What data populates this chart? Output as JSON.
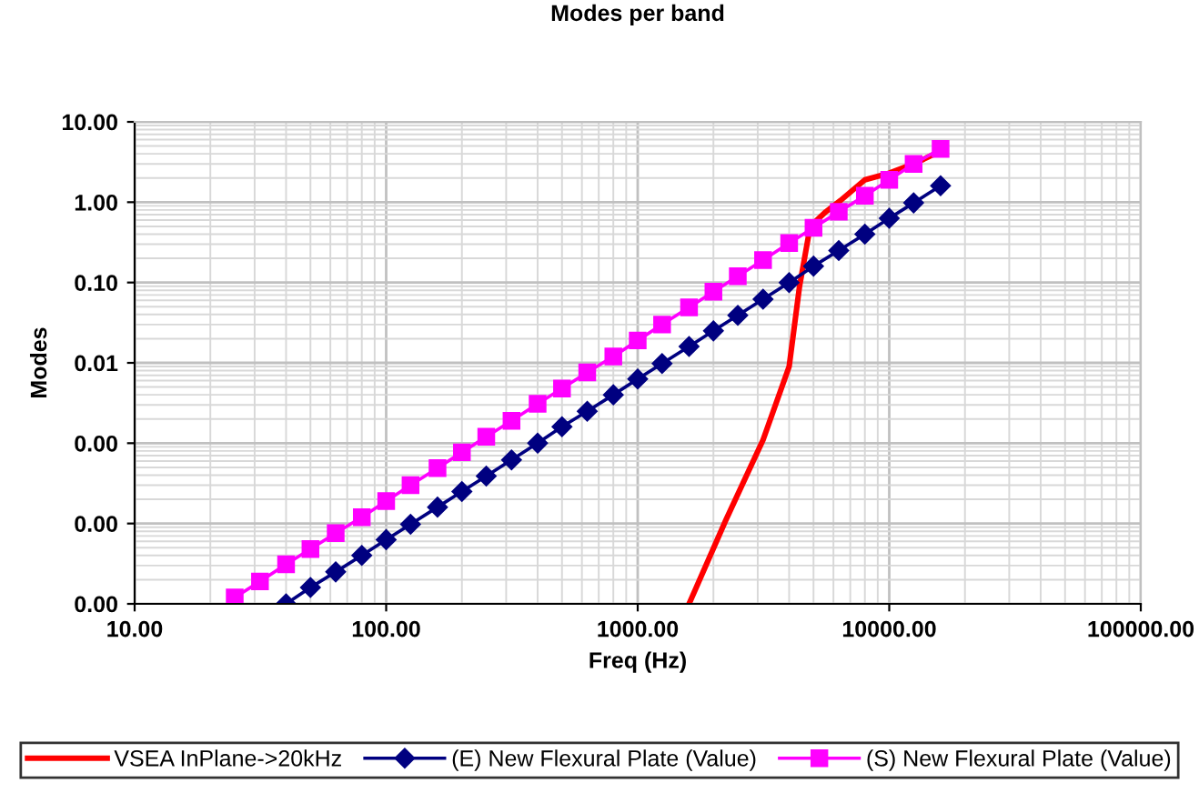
{
  "chart_data": {
    "type": "line",
    "title": "Modes per band",
    "xlabel": "Freq (Hz)",
    "ylabel": "Modes",
    "log": "xy",
    "grid": true,
    "legend": "bottom",
    "line_style": "solid",
    "xlim": [
      10,
      100000
    ],
    "xticks": [
      {
        "value": 10,
        "label": "10.00"
      },
      {
        "value": 100,
        "label": "100.00"
      },
      {
        "value": 1000,
        "label": "1000.00"
      },
      {
        "value": 10000,
        "label": "10000.00"
      },
      {
        "value": 100000,
        "label": "100000.00"
      }
    ],
    "ylim": [
      1e-05,
      10
    ],
    "yticks": [
      {
        "value": 1e-05,
        "label": "0.00"
      },
      {
        "value": 0.0001,
        "label": "0.00"
      },
      {
        "value": 0.001,
        "label": "0.00"
      },
      {
        "value": 0.01,
        "label": "0.01"
      },
      {
        "value": 0.1,
        "label": "0.10"
      },
      {
        "value": 1,
        "label": "1.00"
      },
      {
        "value": 10,
        "label": "10.00"
      }
    ],
    "series": [
      {
        "name": "VSEA InPlane->20kHz",
        "color": "#ff0000",
        "marker": "none",
        "x": [
          1600,
          2240,
          3150,
          4000,
          4400,
          4850,
          5600,
          6400,
          8000,
          10000,
          12500,
          16000
        ],
        "values": [
          1e-05,
          0.00011,
          0.0011,
          0.009,
          0.09,
          0.5,
          0.76,
          1.05,
          1.9,
          2.3,
          3.0,
          4.3
        ]
      },
      {
        "name": "(E) New Flexural Plate (Value)",
        "color": "#000080",
        "marker": "diamond",
        "x": [
          40,
          50,
          63,
          80,
          100,
          125,
          160,
          200,
          250,
          315,
          400,
          500,
          630,
          800,
          1000,
          1250,
          1600,
          2000,
          2500,
          3150,
          4000,
          5000,
          6300,
          8000,
          10000,
          12500,
          16000
        ],
        "values": [
          1e-05,
          1.6e-05,
          2.5e-05,
          4e-05,
          6.3e-05,
          9.8e-05,
          0.00016,
          0.00025,
          0.00039,
          0.00062,
          0.001,
          0.0016,
          0.0025,
          0.004,
          0.0063,
          0.0098,
          0.016,
          0.025,
          0.039,
          0.062,
          0.1,
          0.16,
          0.25,
          0.4,
          0.63,
          0.98,
          1.6
        ]
      },
      {
        "name": "(S) New Flexural Plate (Value)",
        "color": "#ff00ff",
        "marker": "square",
        "x": [
          25,
          31.5,
          40,
          50,
          63,
          80,
          100,
          125,
          160,
          200,
          250,
          315,
          400,
          500,
          630,
          800,
          1000,
          1250,
          1600,
          2000,
          2500,
          3150,
          4000,
          5000,
          6300,
          8000,
          10000,
          12500,
          16000
        ],
        "values": [
          1.2e-05,
          1.9e-05,
          3.1e-05,
          4.8e-05,
          7.6e-05,
          0.00012,
          0.00019,
          0.0003,
          0.00049,
          0.00077,
          0.0012,
          0.0019,
          0.0031,
          0.0048,
          0.0076,
          0.012,
          0.019,
          0.03,
          0.049,
          0.077,
          0.12,
          0.19,
          0.31,
          0.48,
          0.76,
          1.2,
          1.9,
          3.0,
          4.6
        ]
      }
    ]
  }
}
